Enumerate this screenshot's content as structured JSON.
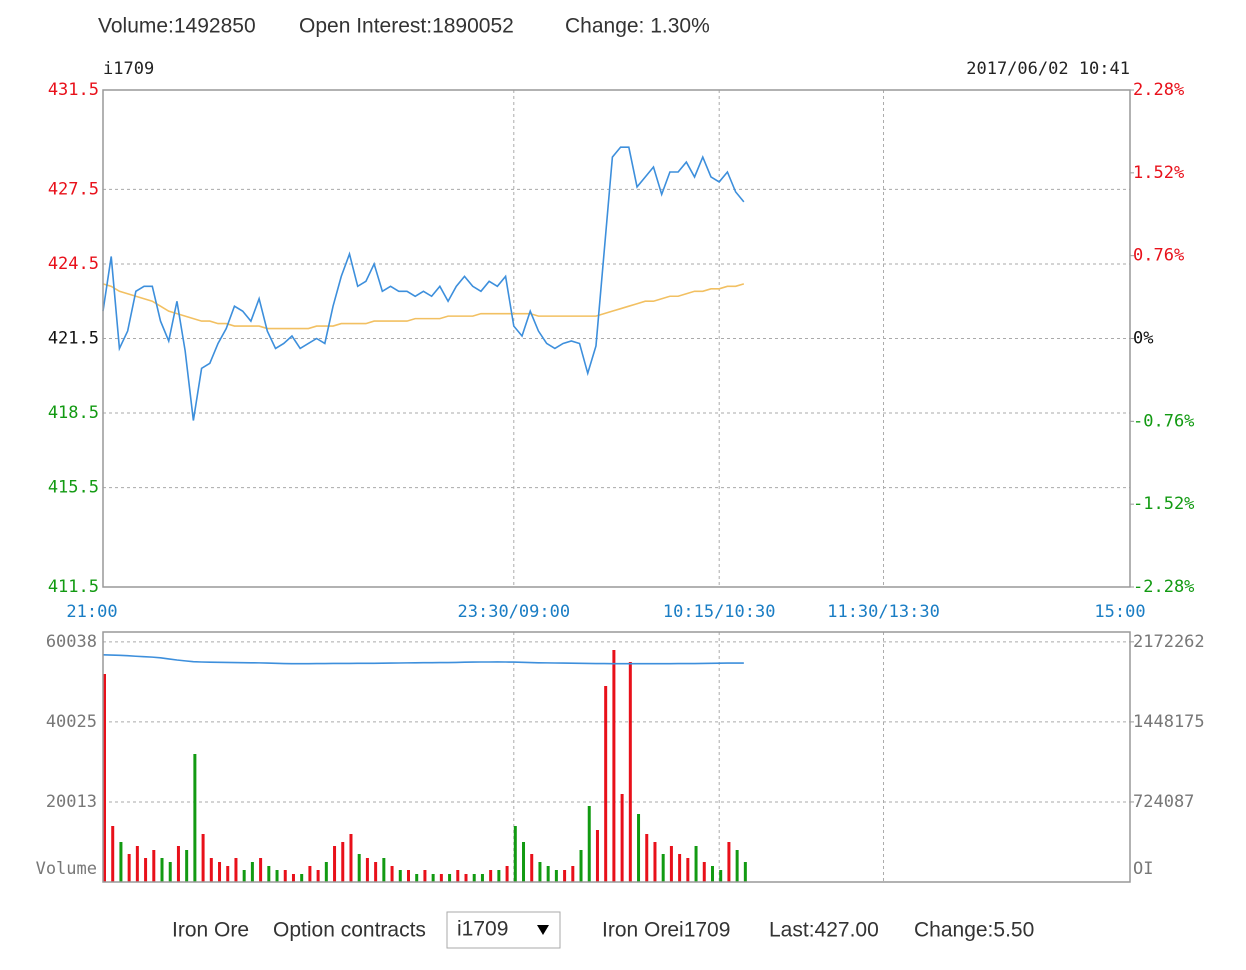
{
  "header": {
    "volume": "Volume:1492850",
    "open_interest": "Open Interest:1890052",
    "change": "Change: 1.30%"
  },
  "chart_data": [
    {
      "type": "line",
      "title": "i1709",
      "subtitle": "2017/06/02 10:41",
      "x": [
        0,
        3,
        6,
        9,
        12,
        15,
        18,
        21,
        24,
        27,
        30,
        33,
        36,
        39,
        42,
        45,
        48,
        51,
        54,
        57,
        60,
        63,
        66,
        69,
        72,
        75,
        78,
        81,
        84,
        87,
        90,
        93,
        96,
        99,
        102,
        105,
        108,
        111,
        114,
        117,
        120,
        123,
        126,
        129,
        132,
        135,
        138,
        141,
        144,
        147,
        150,
        153,
        156,
        159,
        162,
        165,
        168,
        171,
        174,
        177,
        180,
        183,
        186,
        189,
        192,
        195,
        198,
        201,
        204,
        207,
        210,
        213,
        216,
        219,
        222,
        225,
        228,
        231,
        234
      ],
      "xlim": [
        0,
        375
      ],
      "xticks": [
        {
          "value": 0,
          "label": "21:00"
        },
        {
          "value": 150,
          "label": "23:30/09:00"
        },
        {
          "value": 225,
          "label": "10:15/10:30"
        },
        {
          "value": 285,
          "label": "11:30/13:30"
        },
        {
          "value": 375,
          "label": "15:00"
        }
      ],
      "ylim": [
        411.5,
        431.5
      ],
      "yticks": [
        431.5,
        427.5,
        424.5,
        421.5,
        418.5,
        415.5,
        411.5
      ],
      "y2lim": [
        -2.28,
        2.28
      ],
      "y2ticks": [
        {
          "value": 2.28,
          "label": "2.28%"
        },
        {
          "value": 1.52,
          "label": "1.52%"
        },
        {
          "value": 0.76,
          "label": "0.76%"
        },
        {
          "value": 0,
          "label": "0%"
        },
        {
          "value": -0.76,
          "label": "-0.76%"
        },
        {
          "value": -1.52,
          "label": "-1.52%"
        },
        {
          "value": -2.28,
          "label": "-2.28%"
        }
      ],
      "grid": true,
      "series": [
        {
          "color": "#3d8fdc",
          "values": [
            422.6,
            424.8,
            421.1,
            421.8,
            423.4,
            423.6,
            423.6,
            422.2,
            421.4,
            423.0,
            421.0,
            418.2,
            420.3,
            420.5,
            421.3,
            421.9,
            422.8,
            422.6,
            422.2,
            423.1,
            421.8,
            421.1,
            421.3,
            421.6,
            421.1,
            421.3,
            421.5,
            421.3,
            422.8,
            424.0,
            424.9,
            423.6,
            423.8,
            424.5,
            423.4,
            423.6,
            423.4,
            423.4,
            423.2,
            423.4,
            423.2,
            423.6,
            423.0,
            423.6,
            424.0,
            423.6,
            423.4,
            423.8,
            423.6,
            424.0,
            422.0,
            421.6,
            422.6,
            421.8,
            421.3,
            421.1,
            421.3,
            421.4,
            421.3,
            420.1,
            421.2,
            425.0,
            428.8,
            429.2,
            429.2,
            427.6,
            428.0,
            428.4,
            427.3,
            428.2,
            428.2,
            428.6,
            428.0,
            428.8,
            428.0,
            427.8,
            428.2,
            427.4,
            427.0
          ]
        },
        {
          "color": "#f2c062",
          "values": [
            423.7,
            423.6,
            423.4,
            423.3,
            423.2,
            423.1,
            423.0,
            422.8,
            422.6,
            422.5,
            422.4,
            422.3,
            422.2,
            422.2,
            422.1,
            422.1,
            422.0,
            422.0,
            422.0,
            422.0,
            421.9,
            421.9,
            421.9,
            421.9,
            421.9,
            421.9,
            422.0,
            422.0,
            422.0,
            422.1,
            422.1,
            422.1,
            422.1,
            422.2,
            422.2,
            422.2,
            422.2,
            422.2,
            422.3,
            422.3,
            422.3,
            422.3,
            422.4,
            422.4,
            422.4,
            422.4,
            422.5,
            422.5,
            422.5,
            422.5,
            422.5,
            422.5,
            422.5,
            422.4,
            422.4,
            422.4,
            422.4,
            422.4,
            422.4,
            422.4,
            422.4,
            422.5,
            422.6,
            422.7,
            422.8,
            422.9,
            423.0,
            423.0,
            423.1,
            423.2,
            423.2,
            423.3,
            423.4,
            423.4,
            423.5,
            423.5,
            423.6,
            423.6,
            423.7
          ]
        }
      ]
    },
    {
      "type": "bar",
      "y_label": "Volume",
      "y2_label": "OI",
      "x": [
        0,
        3,
        6,
        9,
        12,
        15,
        18,
        21,
        24,
        27,
        30,
        33,
        36,
        39,
        42,
        45,
        48,
        51,
        54,
        57,
        60,
        63,
        66,
        69,
        72,
        75,
        78,
        81,
        84,
        87,
        90,
        93,
        96,
        99,
        102,
        105,
        108,
        111,
        114,
        117,
        120,
        123,
        126,
        129,
        132,
        135,
        138,
        141,
        144,
        147,
        150,
        153,
        156,
        159,
        162,
        165,
        168,
        171,
        174,
        177,
        180,
        183,
        186,
        189,
        192,
        195,
        198,
        201,
        204,
        207,
        210,
        213,
        216,
        219,
        222,
        225,
        228,
        231,
        234
      ],
      "xlim": [
        0,
        375
      ],
      "xticks": [
        150,
        225,
        285
      ],
      "ylim": [
        0,
        62500
      ],
      "yticks": [
        60038,
        40025,
        20013
      ],
      "y2lim": [
        0,
        2261300
      ],
      "y2ticks": [
        2172262,
        1448175,
        724087
      ],
      "grid": true,
      "up_color": "#e8101a",
      "down_color": "#129a12",
      "series": [
        {
          "values": [
            52000,
            14000,
            10000,
            7000,
            9000,
            6000,
            8000,
            6000,
            5000,
            9000,
            8000,
            32000,
            12000,
            6000,
            5000,
            4000,
            6000,
            3000,
            5000,
            6000,
            4000,
            3000,
            3000,
            2000,
            2000,
            4000,
            3000,
            5000,
            9000,
            10000,
            12000,
            7000,
            6000,
            5000,
            6000,
            4000,
            3000,
            3000,
            2000,
            3000,
            2000,
            2000,
            2000,
            3000,
            2000,
            2000,
            2000,
            3000,
            3000,
            4000,
            14000,
            10000,
            7000,
            5000,
            4000,
            3000,
            3000,
            4000,
            8000,
            19000,
            13000,
            49000,
            58000,
            22000,
            55000,
            17000,
            12000,
            10000,
            7000,
            9000,
            7000,
            6000,
            9000,
            5000,
            4000,
            3000,
            10000,
            8000,
            5000
          ]
        },
        {
          "axis": "y2",
          "color": "#3d8fdc",
          "values": [
            2055000,
            2053000,
            2050000,
            2047000,
            2042000,
            2038000,
            2034000,
            2028000,
            2018000,
            2008000,
            2000000,
            1993000,
            1990000,
            1988000,
            1987000,
            1986000,
            1985000,
            1984000,
            1983000,
            1982000,
            1980000,
            1978000,
            1976000,
            1975000,
            1975000,
            1975000,
            1976000,
            1976000,
            1977000,
            1977000,
            1977000,
            1978000,
            1978000,
            1978000,
            1979000,
            1980000,
            1981000,
            1982000,
            1983000,
            1984000,
            1984000,
            1985000,
            1985000,
            1986000,
            1988000,
            1989000,
            1990000,
            1990000,
            1991000,
            1990000,
            1989000,
            1987000,
            1985000,
            1983000,
            1982000,
            1981000,
            1980000,
            1979000,
            1978000,
            1977000,
            1976000,
            1976000,
            1975000,
            1975000,
            1975000,
            1975000,
            1975000,
            1975000,
            1975000,
            1975000,
            1976000,
            1976000,
            1976000,
            1977000,
            1978000,
            1979000,
            1980000,
            1980000,
            1980000
          ]
        }
      ]
    }
  ],
  "footer": {
    "market": "Iron Ore",
    "option_label": "Option contracts",
    "contract_select": "i1709",
    "summary": "Iron Orei1709",
    "last": "Last:427.00",
    "change": "Change:5.50"
  }
}
